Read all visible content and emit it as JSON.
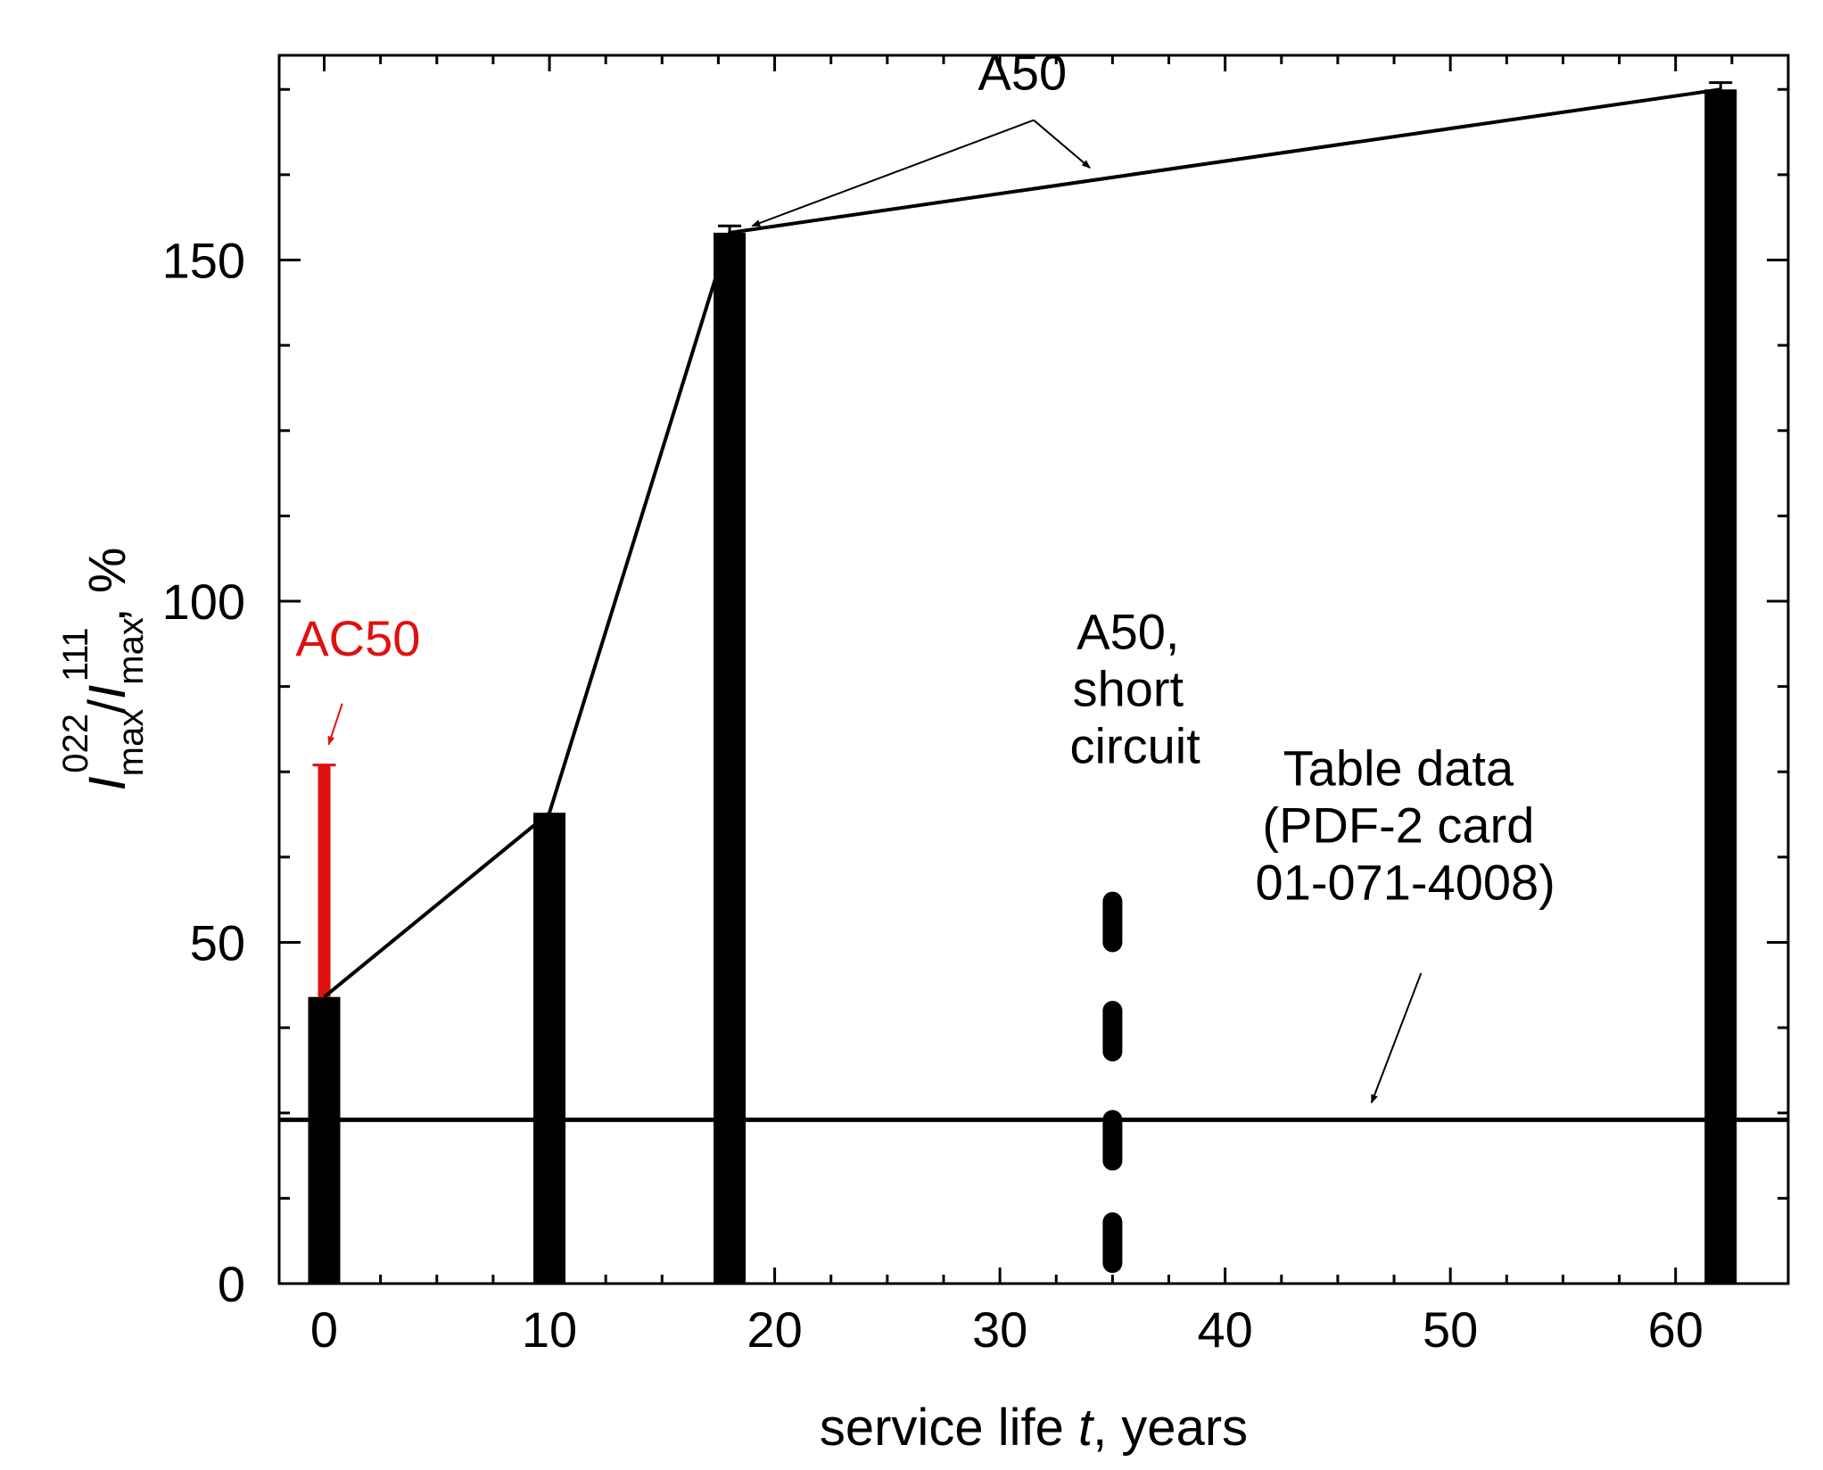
{
  "chart_data": {
    "type": "bar",
    "xlabel": "service life t, years",
    "xlabel_parts": {
      "before": "service life ",
      "var": "t",
      "after": ", years"
    },
    "ylabel_parts": {
      "var1": "I",
      "sub1": "max",
      "sup1": "022",
      "slash": "/",
      "var2": "I",
      "sub2": "max",
      "sup2": "111",
      "after": ", %"
    },
    "xlim": [
      -2,
      65
    ],
    "ylim": [
      0,
      180
    ],
    "xticks": [
      0,
      10,
      20,
      30,
      40,
      50,
      60
    ],
    "yticks": [
      0,
      50,
      100,
      150
    ],
    "series": [
      {
        "name": "A50",
        "color": "#000000",
        "bars": [
          {
            "x": 0,
            "value": 42
          },
          {
            "x": 10,
            "value": 69
          },
          {
            "x": 18,
            "value": 154
          },
          {
            "x": 62,
            "value": 175
          }
        ],
        "error_caps": [
          {
            "x": 18,
            "value": 155
          },
          {
            "x": 62,
            "value": 176
          }
        ],
        "line": [
          {
            "x": 0,
            "y": 42
          },
          {
            "x": 10,
            "y": 69
          },
          {
            "x": 18,
            "y": 154
          },
          {
            "x": 62,
            "y": 175
          }
        ]
      },
      {
        "name": "AC50",
        "color": "#e01010",
        "bars": [
          {
            "x": 0,
            "value": 76,
            "base": 42
          }
        ],
        "error_caps": [
          {
            "x": 0,
            "value": 76
          }
        ]
      },
      {
        "name": "A50, short circuit",
        "color": "#000000",
        "dashed_segments": [
          [
            3,
            9
          ],
          [
            18,
            24
          ],
          [
            34,
            40
          ],
          [
            50,
            56
          ]
        ],
        "x": 35
      }
    ],
    "reference_line": {
      "name": "Table data (PDF-2 card 01-071-4008)",
      "value": 24
    },
    "annotations": {
      "a50": {
        "text": "A50",
        "at": {
          "x": 31,
          "y": 175
        }
      },
      "ac50": {
        "text": "AC50",
        "at": {
          "x": 1.5,
          "y": 92
        },
        "color": "#e01010"
      },
      "short_circuit": {
        "lines": [
          "A50,",
          "short",
          "circuit"
        ],
        "at": {
          "x": 36,
          "y": 93
        }
      },
      "table": {
        "lines": [
          "Table data",
          "(PDF-2 card",
          "01-071-4008)"
        ],
        "at": {
          "x": 48,
          "y": 73
        }
      }
    },
    "arrows": [
      {
        "from": {
          "x": 31.5,
          "y": 170.5
        },
        "to": {
          "x": 19,
          "y": 155
        }
      },
      {
        "from": {
          "x": 31.5,
          "y": 170.5
        },
        "to": {
          "x": 34,
          "y": 163.5
        }
      },
      {
        "from": {
          "x": 0.8,
          "y": 85
        },
        "to": {
          "x": 0.2,
          "y": 79
        },
        "color": "#e01010"
      },
      {
        "from": {
          "x": 48.7,
          "y": 45.5
        },
        "to": {
          "x": 46.5,
          "y": 26.5
        }
      }
    ]
  }
}
